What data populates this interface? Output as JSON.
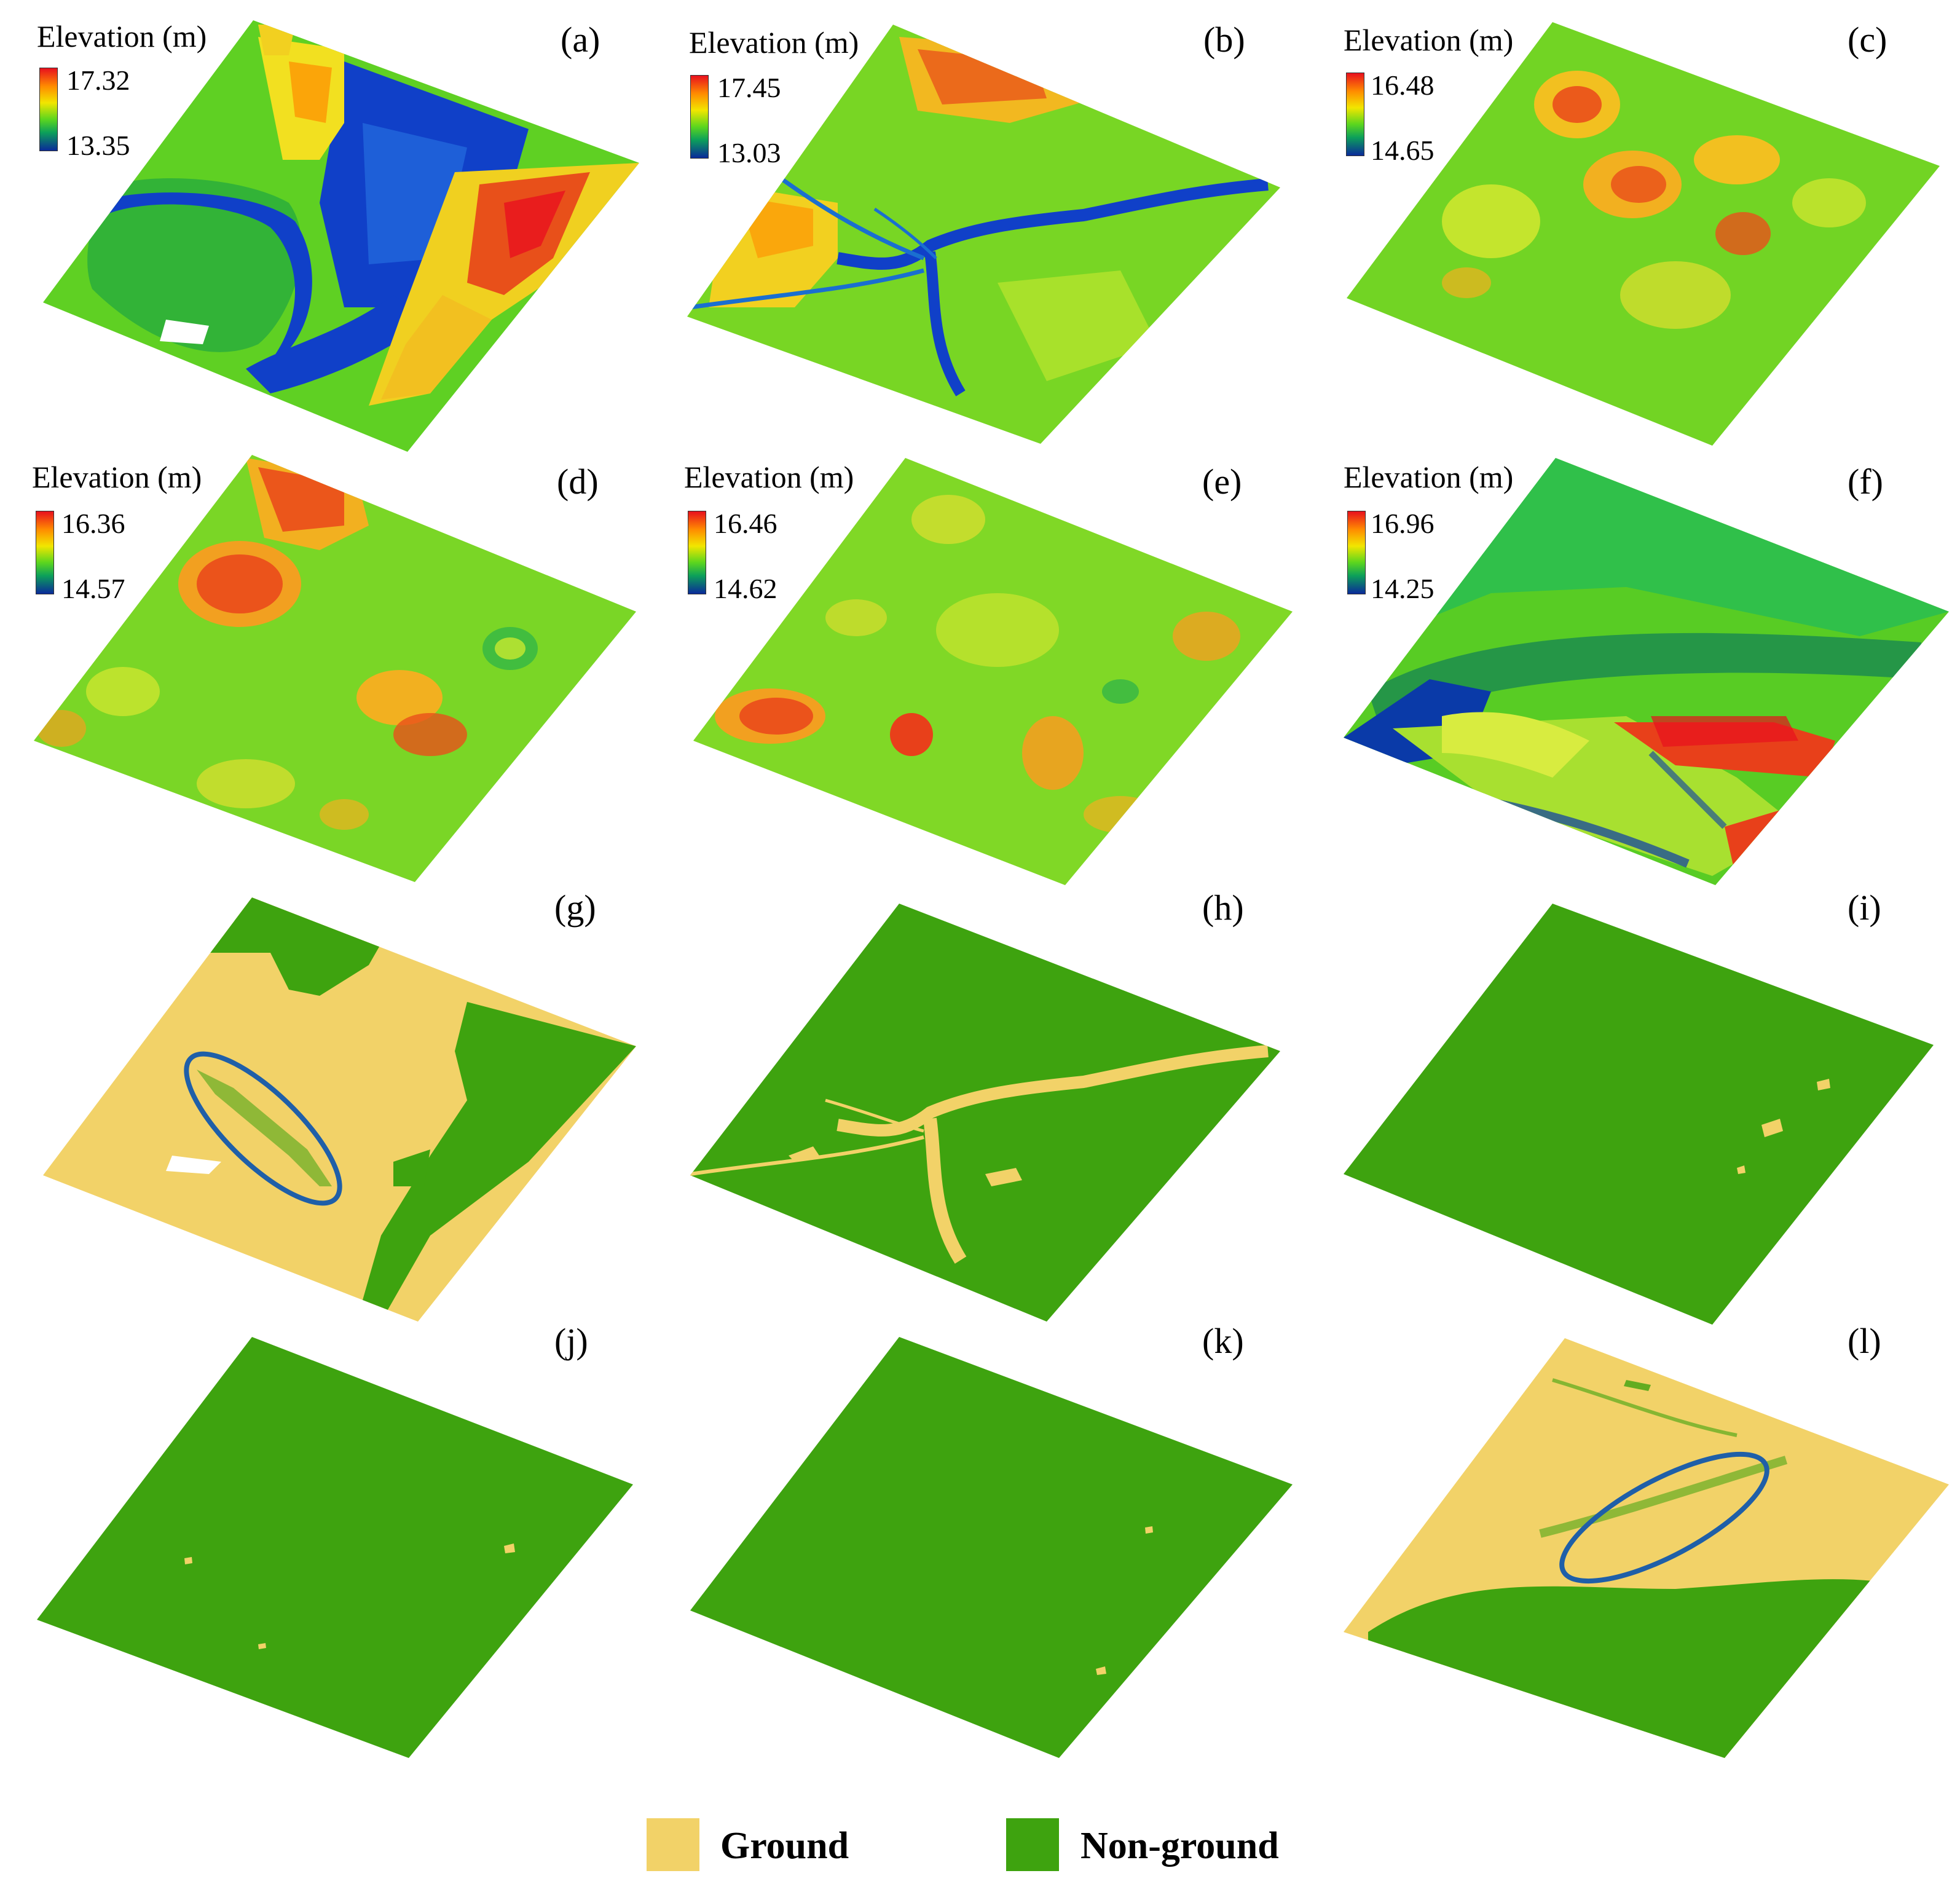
{
  "colors": {
    "ground": "#f2d268",
    "non_ground": "#3ea30f",
    "highlight_ellipse": "#1f5fa8",
    "elev_high": "#e8101e",
    "elev_mid_high": "#ff8c00",
    "elev_mid": "#f2e600",
    "elev_mid_low": "#5cd61e",
    "elev_low_green": "#0ca05a",
    "elev_low": "#0a2a9a"
  },
  "panels": [
    {
      "label": "(a)",
      "kind": "elevation",
      "elevation_title": "Elevation (m)",
      "elev_max": "17.32",
      "elev_min": "13.35"
    },
    {
      "label": "(b)",
      "kind": "elevation",
      "elevation_title": "Elevation (m)",
      "elev_max": "17.45",
      "elev_min": "13.03"
    },
    {
      "label": "(c)",
      "kind": "elevation",
      "elevation_title": "Elevation (m)",
      "elev_max": "16.48",
      "elev_min": "14.65"
    },
    {
      "label": "(d)",
      "kind": "elevation",
      "elevation_title": "Elevation (m)",
      "elev_max": "16.36",
      "elev_min": "14.57"
    },
    {
      "label": "(e)",
      "kind": "elevation",
      "elevation_title": "Elevation (m)",
      "elev_max": "16.46",
      "elev_min": "14.62"
    },
    {
      "label": "(f)",
      "kind": "elevation",
      "elevation_title": "Elevation (m)",
      "elev_max": "16.96",
      "elev_min": "14.25"
    },
    {
      "label": "(g)",
      "kind": "classification"
    },
    {
      "label": "(h)",
      "kind": "classification"
    },
    {
      "label": "(i)",
      "kind": "classification"
    },
    {
      "label": "(j)",
      "kind": "classification"
    },
    {
      "label": "(k)",
      "kind": "classification"
    },
    {
      "label": "(l)",
      "kind": "classification"
    }
  ],
  "legend": {
    "ground_label": "Ground",
    "non_ground_label": "Non-ground"
  }
}
